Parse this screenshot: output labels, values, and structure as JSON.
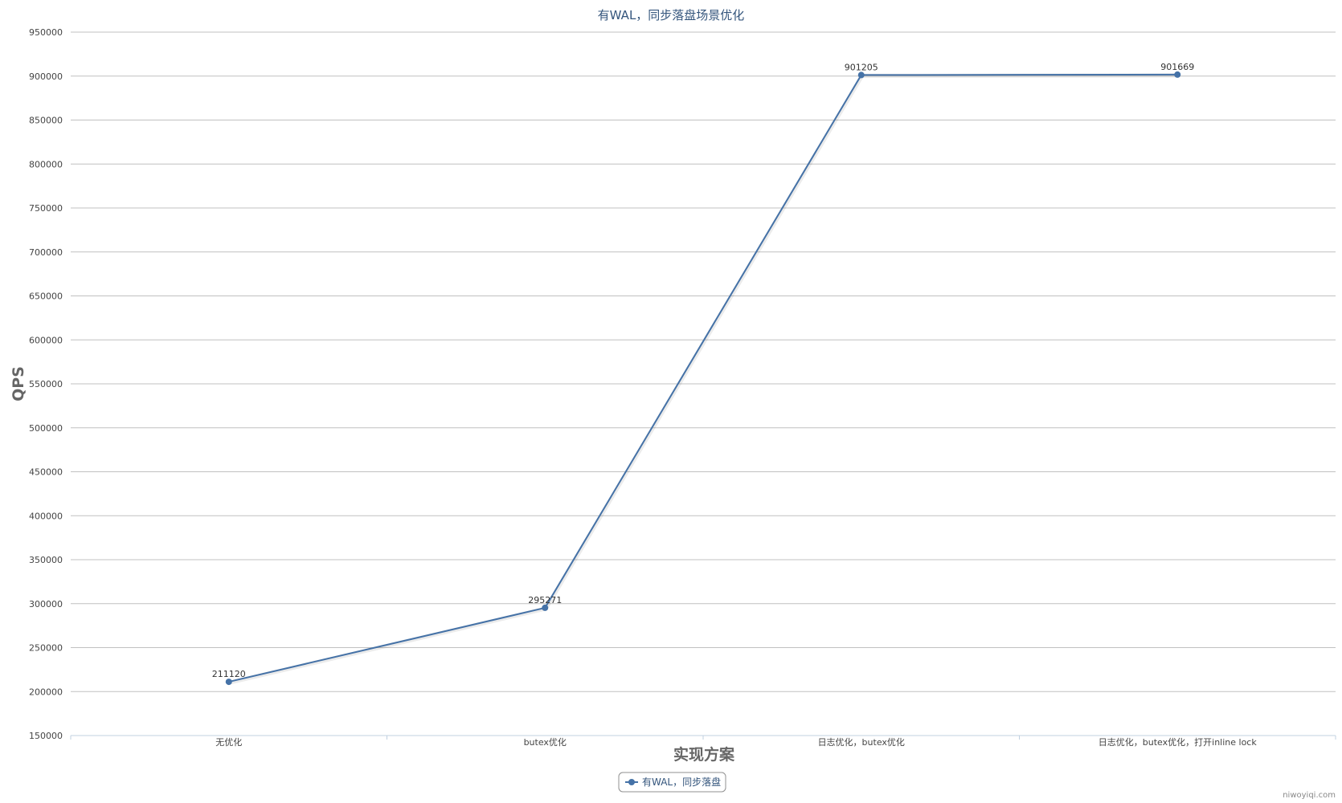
{
  "chart_data": {
    "type": "line",
    "title": "有WAL，同步落盘场景优化",
    "xlabel": "实现方案",
    "ylabel": "QPS",
    "categories": [
      "无优化",
      "butex优化",
      "日志优化，butex优化",
      "日志优化，butex优化，打开inline lock"
    ],
    "series": [
      {
        "name": "有WAL，同步落盘",
        "values": [
          211120,
          295271,
          901205,
          901669
        ],
        "color": "#4572a7"
      }
    ],
    "ylim": [
      150000,
      950000
    ],
    "yticks": [
      150000,
      200000,
      250000,
      300000,
      350000,
      400000,
      450000,
      500000,
      550000,
      600000,
      650000,
      700000,
      750000,
      800000,
      850000,
      900000,
      950000
    ],
    "grid": true,
    "legend_position": "bottom-center",
    "data_labels": true
  },
  "credit": "niwoyiqi.com",
  "colors": {
    "gridline": "#c0c0c0",
    "axis": "#c0d0e0",
    "series": "#4572a7"
  }
}
